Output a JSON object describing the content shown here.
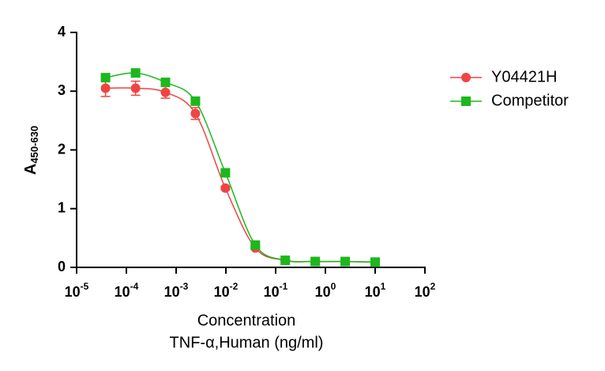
{
  "chart_data": {
    "type": "line",
    "x_label": "Concentration",
    "x_label_2": "TNF-α,Human  (ng/ml)",
    "y_label": "A",
    "y_label_subscript": "450-630",
    "xscale": "log",
    "xlim": [
      1e-05,
      100
    ],
    "xticks": [
      {
        "value": 1e-05,
        "label": "10",
        "exponent": "-5"
      },
      {
        "value": 0.0001,
        "label": "10",
        "exponent": "-4"
      },
      {
        "value": 0.001,
        "label": "10",
        "exponent": "-3"
      },
      {
        "value": 0.01,
        "label": "10",
        "exponent": "-2"
      },
      {
        "value": 0.1,
        "label": "10",
        "exponent": "-1"
      },
      {
        "value": 1,
        "label": "10",
        "exponent": "0"
      },
      {
        "value": 10,
        "label": "10",
        "exponent": "1"
      },
      {
        "value": 100,
        "label": "10",
        "exponent": "2"
      }
    ],
    "ylim": [
      0,
      4
    ],
    "yticks": [
      0,
      1,
      2,
      3,
      4
    ],
    "x": [
      3.81e-05,
      0.000153,
      0.00061,
      0.00244,
      0.00977,
      0.0391,
      0.156,
      0.625,
      2.5,
      10
    ],
    "series": [
      {
        "name": "Y04421H",
        "color": "#ef4444",
        "marker": "circle",
        "values": [
          3.05,
          3.05,
          2.98,
          2.62,
          1.35,
          0.33,
          0.12,
          0.1,
          0.1,
          0.09
        ],
        "errors": [
          0.14,
          0.12,
          0.1,
          0.1,
          0.03,
          0.02,
          0.01,
          0.01,
          0.01,
          0.01
        ]
      },
      {
        "name": "Competitor",
        "color": "#1cb81c",
        "marker": "square",
        "values": [
          3.23,
          3.31,
          3.15,
          2.83,
          1.61,
          0.38,
          0.12,
          0.1,
          0.1,
          0.09
        ],
        "errors": [
          0.03,
          0.03,
          0.03,
          0.03,
          0.03,
          0.02,
          0.01,
          0.01,
          0.01,
          0.01
        ]
      }
    ],
    "legend": "right"
  }
}
